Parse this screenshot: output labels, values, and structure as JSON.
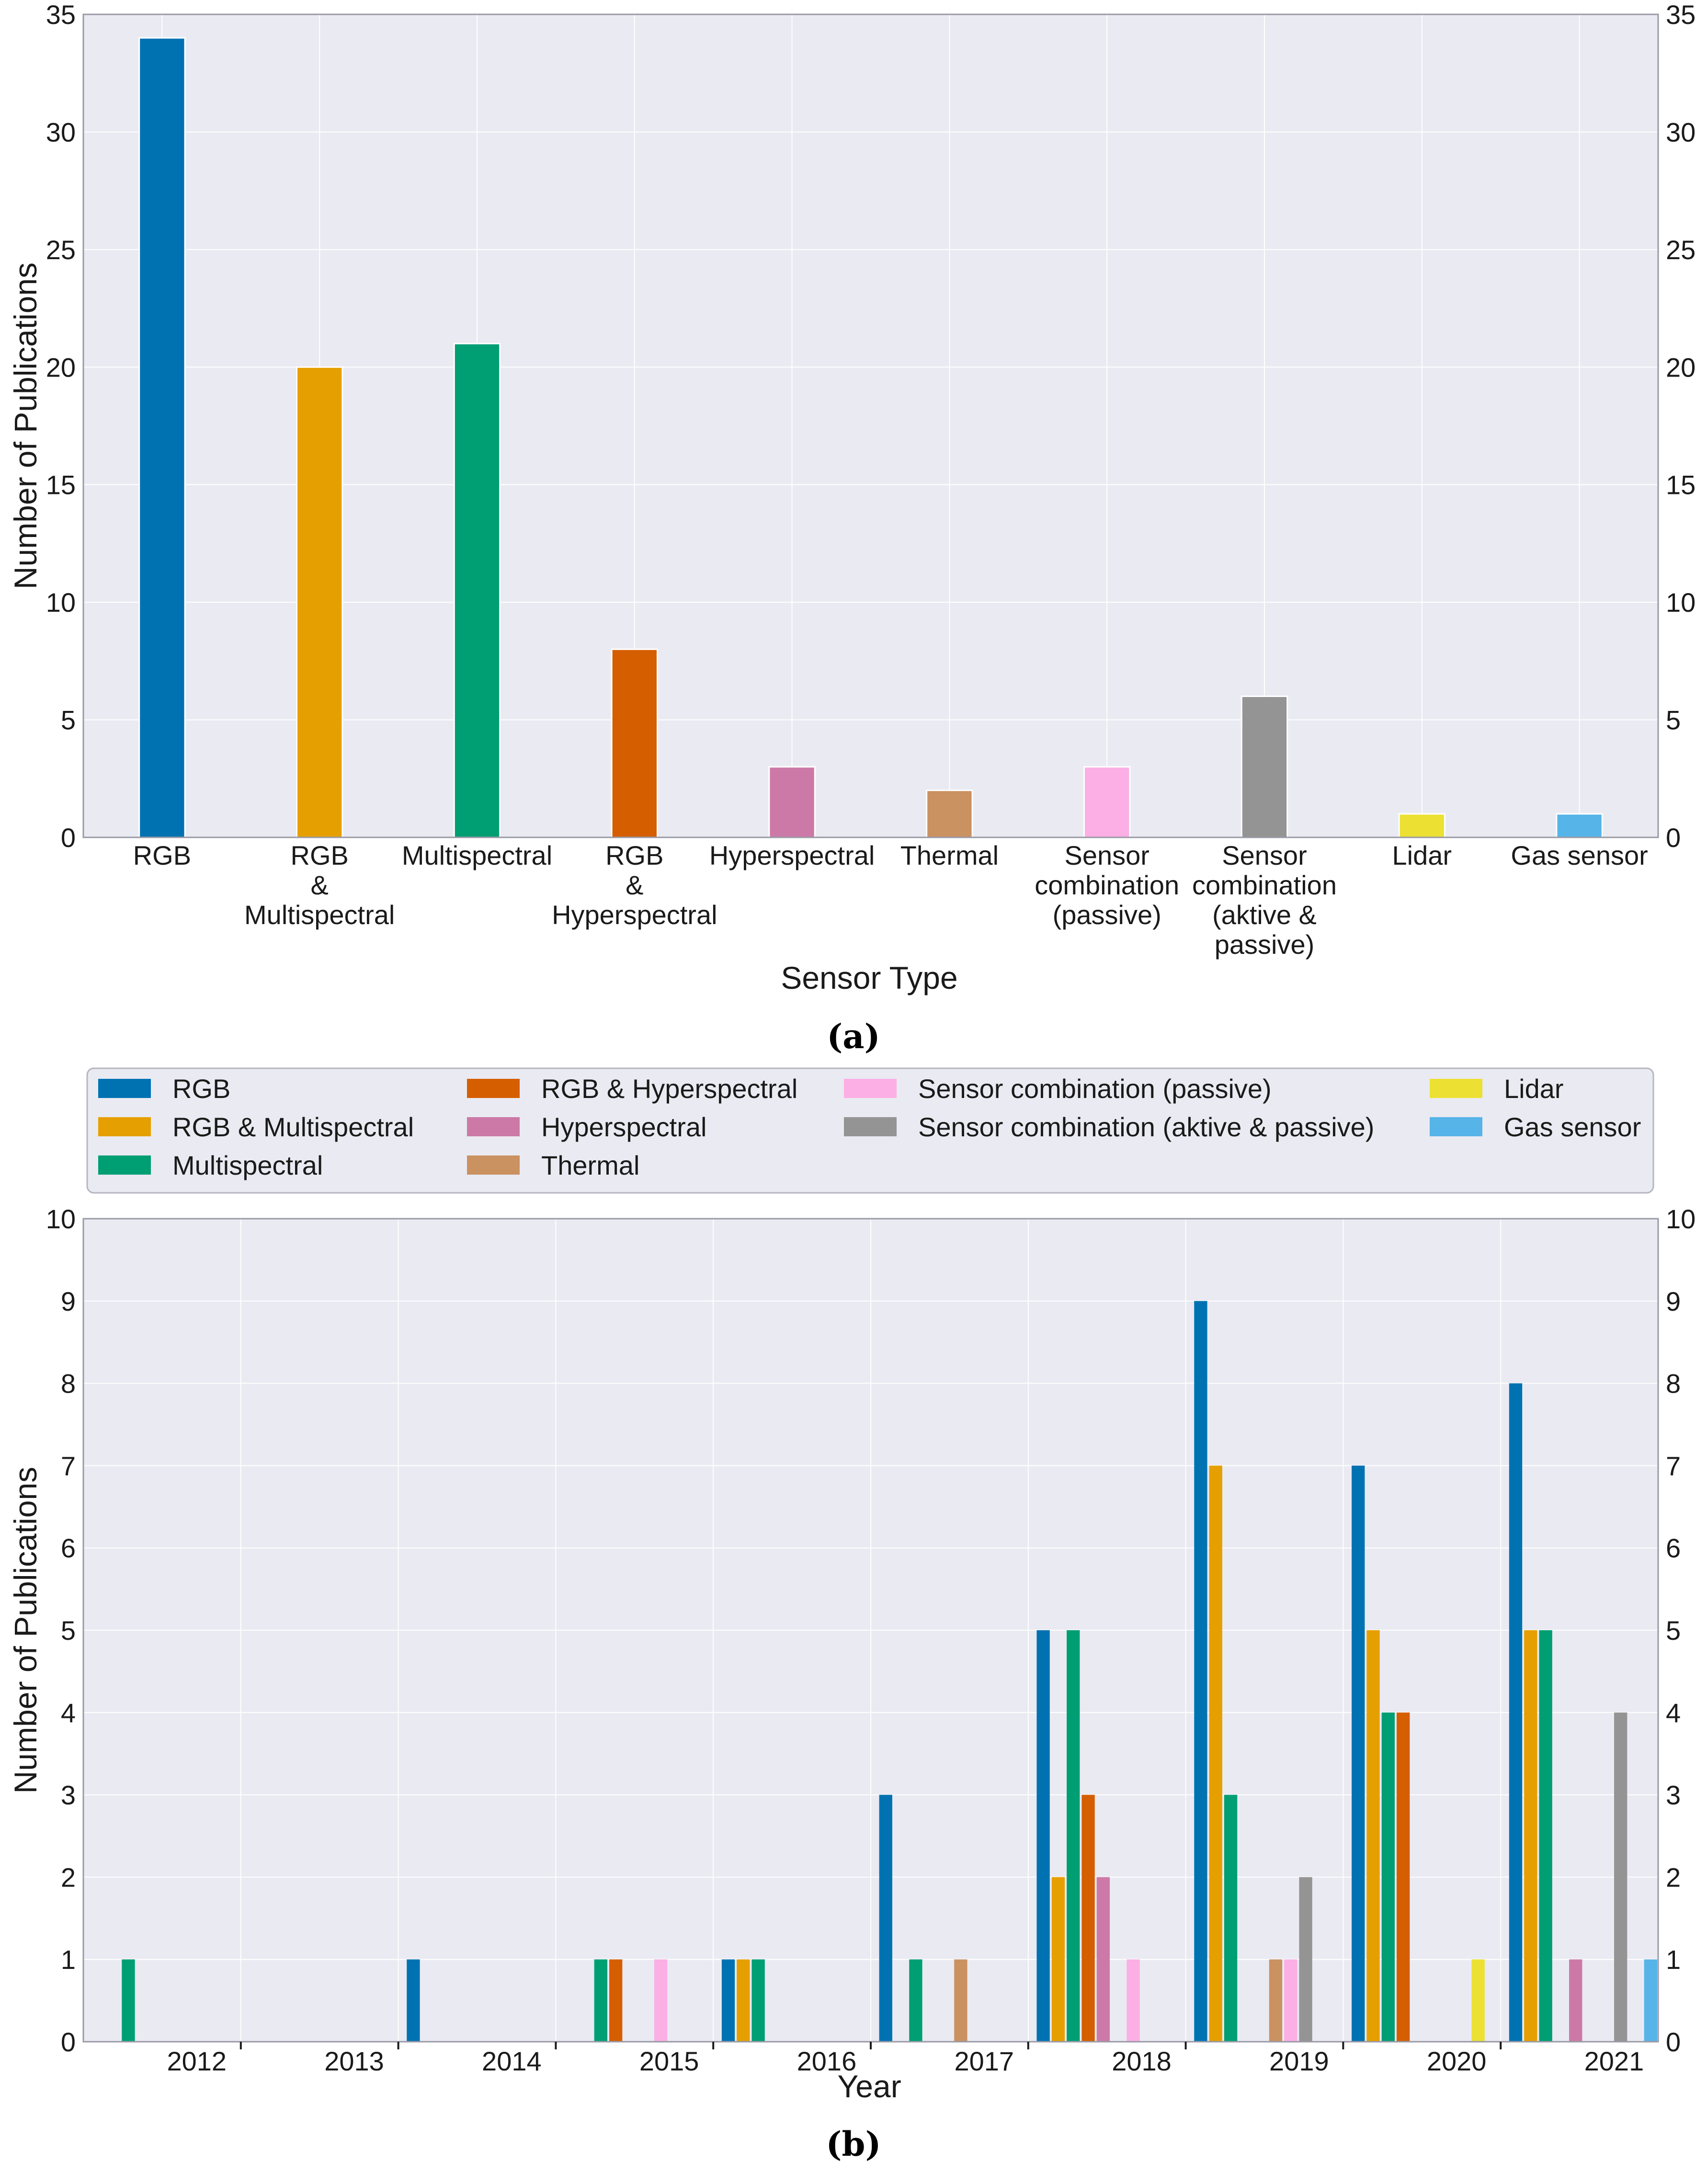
{
  "chart_data": [
    {
      "type": "bar",
      "title": "",
      "xlabel": "Sensor Type",
      "ylabel": "Number of Publications",
      "ylim": [
        0,
        35
      ],
      "yticks": [
        0,
        5,
        10,
        15,
        20,
        25,
        30,
        35
      ],
      "grid": true,
      "categories": [
        [
          "RGB"
        ],
        [
          "RGB",
          "&",
          "Multispectral"
        ],
        [
          "Multispectral"
        ],
        [
          "RGB",
          "&",
          "Hyperspectral"
        ],
        [
          "Hyperspectral"
        ],
        [
          "Thermal"
        ],
        [
          "Sensor",
          "combination",
          "(passive)"
        ],
        [
          "Sensor",
          "combination",
          "(aktive &",
          "passive)"
        ],
        [
          "Lidar"
        ],
        [
          "Gas sensor"
        ]
      ],
      "values": [
        34,
        20,
        21,
        8,
        3,
        2,
        3,
        6,
        1,
        1
      ],
      "colors": [
        "#0072b2",
        "#e69f00",
        "#009e73",
        "#d55e00",
        "#cc79a7",
        "#ca9161",
        "#fbafe4",
        "#949494",
        "#ece133",
        "#56b4e9"
      ]
    },
    {
      "type": "bar",
      "title": "",
      "xlabel": "Year",
      "ylabel": "Number of Publications",
      "ylim": [
        0,
        10
      ],
      "yticks": [
        0,
        1,
        2,
        3,
        4,
        5,
        6,
        7,
        8,
        9,
        10
      ],
      "grid": true,
      "legend_placement": "top",
      "categories": [
        "2012",
        "2013",
        "2014",
        "2015",
        "2016",
        "2017",
        "2018",
        "2019",
        "2020",
        "2021"
      ],
      "series": [
        {
          "name": "RGB",
          "color": "#0072b2",
          "values": [
            0,
            0,
            1,
            0,
            1,
            3,
            5,
            9,
            7,
            8
          ]
        },
        {
          "name": "RGB & Multispectral",
          "color": "#e69f00",
          "values": [
            0,
            0,
            0,
            0,
            1,
            0,
            2,
            7,
            5,
            5
          ]
        },
        {
          "name": "Multispectral",
          "color": "#009e73",
          "values": [
            1,
            0,
            0,
            1,
            1,
            1,
            5,
            3,
            4,
            5
          ]
        },
        {
          "name": "RGB & Hyperspectral",
          "color": "#d55e00",
          "values": [
            0,
            0,
            0,
            1,
            0,
            0,
            3,
            0,
            4,
            0
          ]
        },
        {
          "name": "Hyperspectral",
          "color": "#cc79a7",
          "values": [
            0,
            0,
            0,
            0,
            0,
            0,
            2,
            0,
            0,
            1
          ]
        },
        {
          "name": "Thermal",
          "color": "#ca9161",
          "values": [
            0,
            0,
            0,
            0,
            0,
            1,
            0,
            1,
            0,
            0
          ]
        },
        {
          "name": "Sensor combination (passive)",
          "color": "#fbafe4",
          "values": [
            0,
            0,
            0,
            1,
            0,
            0,
            1,
            1,
            0,
            0
          ]
        },
        {
          "name": "Sensor combination (aktive & passive)",
          "color": "#949494",
          "values": [
            0,
            0,
            0,
            0,
            0,
            0,
            0,
            2,
            0,
            4
          ]
        },
        {
          "name": "Lidar",
          "color": "#ece133",
          "values": [
            0,
            0,
            0,
            0,
            0,
            0,
            0,
            0,
            1,
            0
          ]
        },
        {
          "name": "Gas sensor",
          "color": "#56b4e9",
          "values": [
            0,
            0,
            0,
            0,
            0,
            0,
            0,
            0,
            0,
            1
          ]
        }
      ]
    }
  ],
  "captions": {
    "a": "(a)",
    "b": "(b)"
  },
  "colors": {
    "plot_bg": "#eaeaf2",
    "grid": "#ffffff",
    "frame": "#9a9aa6",
    "text": "#1a1a1a"
  }
}
